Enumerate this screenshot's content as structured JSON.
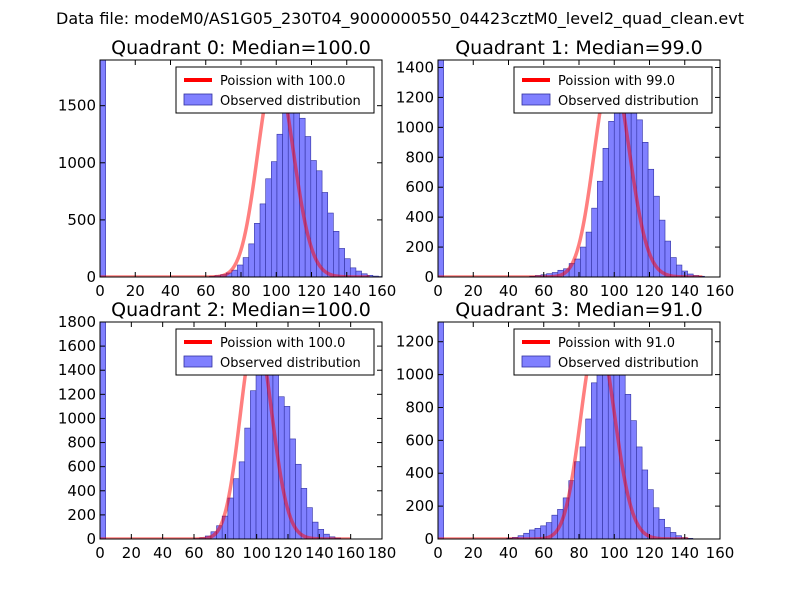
{
  "figure": {
    "suptitle": "Data file: modeM0/AS1G05_230T04_9000000550_04423cztM0_level2_quad_clean.evt"
  },
  "colors": {
    "fit": "#ff0000",
    "hist_fill": "#8080ff",
    "hist_edge": "#3030a0",
    "axis": "#000000"
  },
  "chart_data": [
    {
      "type": "bar",
      "title": "Quadrant 0: Median=100.0",
      "xlim": [
        0,
        160
      ],
      "ylim": [
        0,
        1900
      ],
      "xticks": [
        0,
        20,
        40,
        60,
        80,
        100,
        120,
        140,
        160
      ],
      "yticks": [
        0,
        500,
        1000,
        1500
      ],
      "legend": {
        "placement": "top-right",
        "fit_label": "Poission with 100.0",
        "hist_label": "Observed distribution"
      },
      "bin_width": 3.2,
      "zero_bin": 1900,
      "bins_start": 62,
      "counts": [
        5,
        12,
        20,
        35,
        60,
        105,
        170,
        290,
        470,
        640,
        860,
        1010,
        1250,
        1450,
        1620,
        1470,
        1390,
        1230,
        1020,
        930,
        740,
        560,
        400,
        250,
        160,
        80,
        52,
        28,
        15,
        8,
        4
      ],
      "fit": {
        "mean": 100.0,
        "peak": 1820,
        "xmax": 153
      }
    },
    {
      "type": "bar",
      "title": "Quadrant 1: Median=99.0",
      "xlim": [
        0,
        160
      ],
      "ylim": [
        0,
        1450
      ],
      "xticks": [
        0,
        20,
        40,
        60,
        80,
        100,
        120,
        140,
        160
      ],
      "yticks": [
        0,
        200,
        400,
        600,
        800,
        1000,
        1200,
        1400
      ],
      "legend": {
        "placement": "top-right",
        "fit_label": "Poission with 99.0",
        "hist_label": "Observed distribution"
      },
      "bin_width": 3.2,
      "zero_bin": 1450,
      "bins_start": 52,
      "counts": [
        5,
        10,
        15,
        22,
        30,
        45,
        55,
        90,
        120,
        200,
        300,
        460,
        640,
        860,
        1040,
        1220,
        1360,
        1280,
        1180,
        1050,
        900,
        720,
        540,
        380,
        240,
        130,
        80,
        40,
        20,
        10,
        5
      ],
      "fit": {
        "mean": 99.0,
        "peak": 1380,
        "xmax": 150
      }
    },
    {
      "type": "bar",
      "title": "Quadrant 2: Median=100.0",
      "xlim": [
        0,
        180
      ],
      "ylim": [
        0,
        1800
      ],
      "xticks": [
        0,
        20,
        40,
        60,
        80,
        100,
        120,
        140,
        160,
        180
      ],
      "yticks": [
        0,
        200,
        400,
        600,
        800,
        1000,
        1200,
        1400,
        1600,
        1800
      ],
      "legend": {
        "placement": "top-right",
        "fit_label": "Poission with 100.0",
        "hist_label": "Observed distribution"
      },
      "bin_width": 3.6,
      "zero_bin": 1800,
      "bins_start": 60,
      "counts": [
        4,
        10,
        25,
        60,
        110,
        190,
        340,
        500,
        640,
        920,
        1230,
        1450,
        1560,
        1430,
        1400,
        1180,
        1100,
        830,
        620,
        420,
        260,
        140,
        80,
        40,
        18,
        8
      ],
      "fit": {
        "mean": 100.0,
        "peak": 1720,
        "xmax": 160
      }
    },
    {
      "type": "bar",
      "title": "Quadrant 3: Median=91.0",
      "xlim": [
        0,
        160
      ],
      "ylim": [
        0,
        1320
      ],
      "xticks": [
        0,
        20,
        40,
        60,
        80,
        100,
        120,
        140,
        160
      ],
      "yticks": [
        0,
        200,
        400,
        600,
        800,
        1000,
        1200
      ],
      "legend": {
        "placement": "top-right",
        "fit_label": "Poission with 91.0",
        "hist_label": "Observed distribution"
      },
      "bin_width": 3.2,
      "zero_bin": 1320,
      "bins_start": 39,
      "counts": [
        5,
        10,
        20,
        35,
        55,
        65,
        80,
        100,
        145,
        180,
        250,
        355,
        470,
        560,
        730,
        950,
        1080,
        1180,
        1200,
        1150,
        1000,
        880,
        720,
        560,
        420,
        300,
        190,
        120,
        70,
        40,
        20,
        8,
        4
      ],
      "fit": {
        "mean": 91.0,
        "peak": 1240,
        "xmax": 142
      }
    }
  ]
}
